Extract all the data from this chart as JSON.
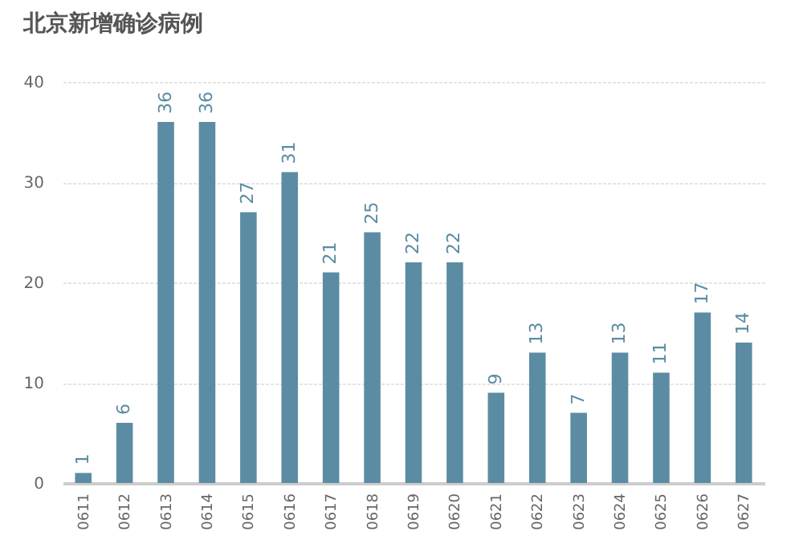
{
  "chart_data": {
    "type": "bar",
    "title": "北京新增确诊病例",
    "categories": [
      "0611",
      "0612",
      "0613",
      "0614",
      "0615",
      "0616",
      "0617",
      "0618",
      "0619",
      "0620",
      "0621",
      "0622",
      "0623",
      "0624",
      "0625",
      "0626",
      "0627"
    ],
    "values": [
      1,
      6,
      36,
      36,
      27,
      31,
      21,
      25,
      22,
      22,
      9,
      13,
      7,
      13,
      11,
      17,
      14
    ],
    "color": "#5b8ca3",
    "ylim": [
      0,
      40
    ],
    "yticks": [
      0,
      10,
      20,
      30,
      40
    ],
    "grid": "y",
    "data_labels": true
  }
}
